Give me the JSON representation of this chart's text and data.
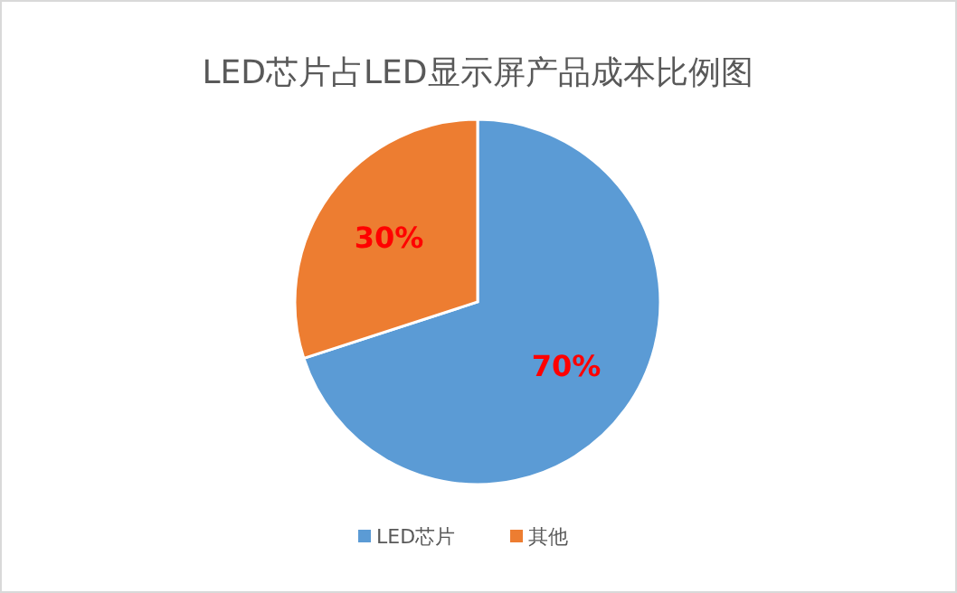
{
  "chart_data": {
    "type": "pie",
    "title": "LED芯片占LED显示屏产品成本比例图",
    "categories": [
      "LED芯片",
      "其他"
    ],
    "values": [
      70,
      30
    ],
    "colors": [
      "#5b9bd5",
      "#ed7d31"
    ],
    "value_labels": [
      "70%",
      "30%"
    ],
    "legend": "bottom"
  }
}
